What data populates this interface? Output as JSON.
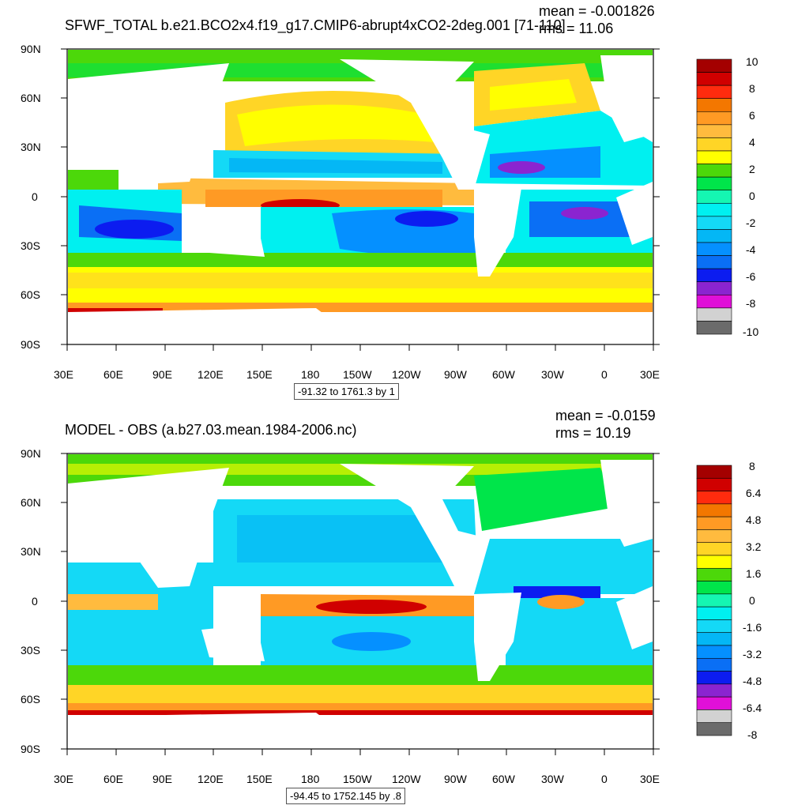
{
  "panels": [
    {
      "title": "SFWF_TOTAL b.e21.BCO2x4.f19_g17.CMIP6-abrupt4xCO2-2deg.001 [71-110]",
      "mean": "mean = -0.001826",
      "rms": "rms = 11.06",
      "range": "-91.32 to 1761.3 by 1",
      "colorbar": {
        "labels": [
          "10",
          "8",
          "6",
          "4",
          "2",
          "0",
          "-2",
          "-4",
          "-6",
          "-8",
          "-10"
        ],
        "colors": [
          "#a40000",
          "#d00000",
          "#ff2b0e",
          "#f37700",
          "#ff9a24",
          "#ffbb3e",
          "#ffd526",
          "#ffff00",
          "#4cd80a",
          "#00e54a",
          "#15f6b2",
          "#00f0f0",
          "#14d9f6",
          "#04b7f5",
          "#0590ff",
          "#0a6ff5",
          "#0c1cf0",
          "#8b24d0",
          "#e010d8",
          "#d2d2d2",
          "#6b6b6b"
        ]
      }
    },
    {
      "title": "MODEL - OBS (a.b27.03.mean.1984-2006.nc)",
      "mean": "mean = -0.0159",
      "rms": "rms = 10.19",
      "range": "-94.45 to 1752.145 by .8",
      "colorbar": {
        "labels": [
          "8",
          "6.4",
          "4.8",
          "3.2",
          "1.6",
          "0",
          "-1.6",
          "-3.2",
          "-4.8",
          "-6.4",
          "-8"
        ],
        "colors": [
          "#a40000",
          "#d00000",
          "#ff2b0e",
          "#f37700",
          "#ff9a24",
          "#ffbb3e",
          "#ffd526",
          "#ffff00",
          "#4cd80a",
          "#00e54a",
          "#15f6b2",
          "#00f0f0",
          "#14d9f6",
          "#04b7f5",
          "#0590ff",
          "#0a6ff5",
          "#0c1cf0",
          "#8b24d0",
          "#e010d8",
          "#d2d2d2",
          "#6b6b6b"
        ]
      }
    }
  ],
  "axes": {
    "lat_labels": [
      "90N",
      "60N",
      "30N",
      "0",
      "30S",
      "60S",
      "90S"
    ],
    "lon_labels": [
      "30E",
      "60E",
      "90E",
      "120E",
      "150E",
      "180",
      "150W",
      "120W",
      "90W",
      "60W",
      "30W",
      "0",
      "30E"
    ]
  }
}
